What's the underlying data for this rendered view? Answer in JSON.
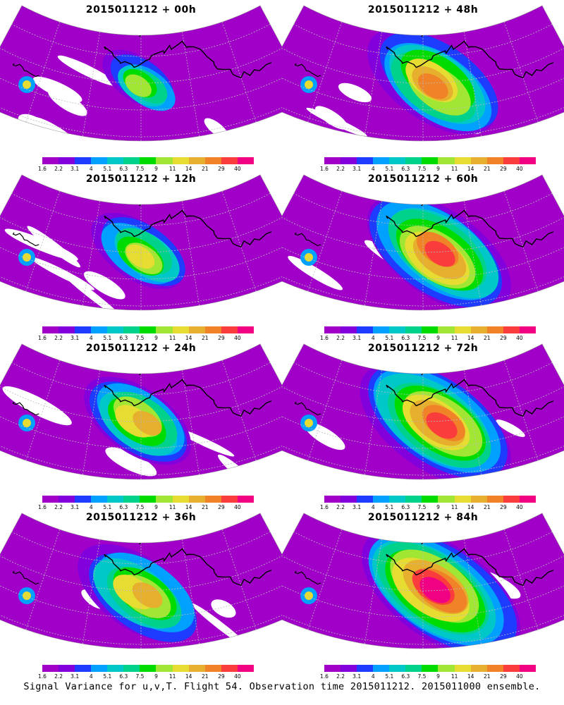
{
  "panels": [
    {
      "title": "2015011212 + 00h",
      "col": 0,
      "row": 0,
      "intensity": 0.35
    },
    {
      "title": "2015011212 + 48h",
      "col": 1,
      "row": 0,
      "intensity": 0.75
    },
    {
      "title": "2015011212 + 12h",
      "col": 0,
      "row": 1,
      "intensity": 0.5
    },
    {
      "title": "2015011212 + 60h",
      "col": 1,
      "row": 1,
      "intensity": 0.85
    },
    {
      "title": "2015011212 + 24h",
      "col": 0,
      "row": 2,
      "intensity": 0.6
    },
    {
      "title": "2015011212 + 72h",
      "col": 1,
      "row": 2,
      "intensity": 0.9
    },
    {
      "title": "2015011212 + 36h",
      "col": 0,
      "row": 3,
      "intensity": 0.68
    },
    {
      "title": "2015011212 + 84h",
      "col": 1,
      "row": 3,
      "intensity": 0.95
    }
  ],
  "colorbar": {
    "colors": [
      "#a000c8",
      "#8200dc",
      "#1e3cff",
      "#00a0ff",
      "#00c8c8",
      "#00d28c",
      "#00dc00",
      "#a0e632",
      "#e6dc32",
      "#e6af2d",
      "#f08228",
      "#fa3c3c",
      "#f00082"
    ],
    "labels": [
      "1.6",
      "2.2",
      "3.1",
      "4",
      "5.1",
      "6.3",
      "7.5",
      "9",
      "11",
      "14",
      "21",
      "29",
      "40"
    ]
  },
  "footer": "Signal Variance for u,v,T. Flight 54. Observation time 2015011212. 2015011000 ensemble."
}
